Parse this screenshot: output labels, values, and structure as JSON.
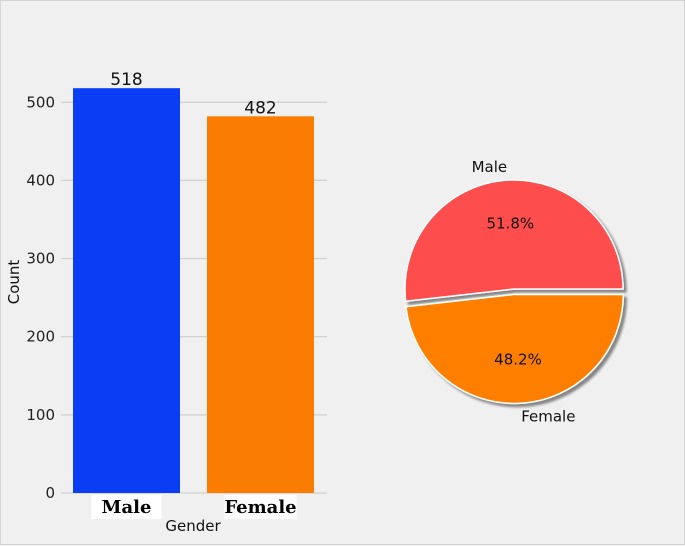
{
  "chart_data": [
    {
      "type": "bar",
      "categories": [
        "Male",
        "Female"
      ],
      "values": [
        518,
        482
      ],
      "colors": [
        "#0a3ef5",
        "#fa7c00"
      ],
      "data_labels": [
        "518",
        "482"
      ],
      "xlabel": "Gender",
      "ylabel": "Count",
      "ylim": [
        0,
        530
      ],
      "yticks": [
        0,
        100,
        200,
        300,
        400,
        500
      ],
      "ytick_labels": [
        "0",
        "100",
        "200",
        "300",
        "400",
        "500"
      ],
      "grid": "horizontal"
    },
    {
      "type": "pie",
      "labels": [
        "Male",
        "Female"
      ],
      "values": [
        51.8,
        48.2
      ],
      "pct_labels": [
        "51.8%",
        "48.2%"
      ],
      "colors": [
        "#fe4d4d",
        "#fe7f00"
      ],
      "explode": [
        0,
        0.05
      ],
      "shadow": true
    }
  ]
}
